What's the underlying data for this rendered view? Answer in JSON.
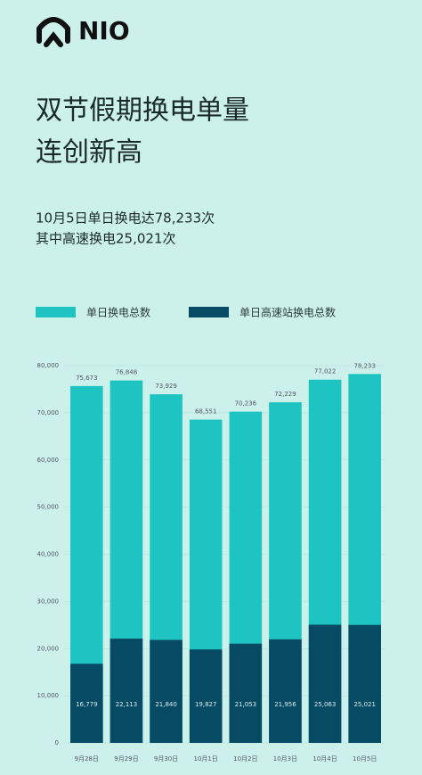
{
  "logo": "NIO",
  "chart_data": {
    "type": "bar",
    "title": [
      "双节假期换电单量",
      "连创新高"
    ],
    "subtitle": [
      "10月5日单日换电达78,233次",
      "其中高速换电25,021次"
    ],
    "categories": [
      "9月28日",
      "9月29日",
      "9月30日",
      "10月1日",
      "10月2日",
      "10月3日",
      "10月4日",
      "10月5日"
    ],
    "series": [
      {
        "name": "单日换电总数",
        "color": "#1ec4c1",
        "values": [
          75673,
          76848,
          73929,
          68551,
          70236,
          72229,
          77022,
          78233
        ],
        "value_labels": [
          "75,673",
          "76,848",
          "73,929",
          "68,551",
          "70,236",
          "72,229",
          "77,022",
          "78,233"
        ]
      },
      {
        "name": "单日高速站换电总数",
        "color": "#064a63",
        "values": [
          16779,
          22113,
          21840,
          19827,
          21053,
          21956,
          25063,
          25021
        ],
        "value_labels": [
          "16,779",
          "22,113",
          "21,840",
          "19,827",
          "21,053",
          "21,956",
          "25,063",
          "25,021"
        ]
      }
    ],
    "ylim": [
      0,
      80000
    ],
    "yticks": [
      0,
      {
        "value": 10000,
        "label": "10,000"
      },
      {
        "value": 20000,
        "label": "20,000"
      },
      {
        "value": 30000,
        "label": "30,000"
      },
      {
        "value": 40000,
        "label": "40,000"
      },
      {
        "value": 50000,
        "label": "50,000"
      },
      {
        "value": 60000,
        "label": "60,000"
      },
      {
        "value": 70000,
        "label": "70,000"
      },
      {
        "value": 80000,
        "label": "80,000"
      }
    ],
    "grid": true
  }
}
